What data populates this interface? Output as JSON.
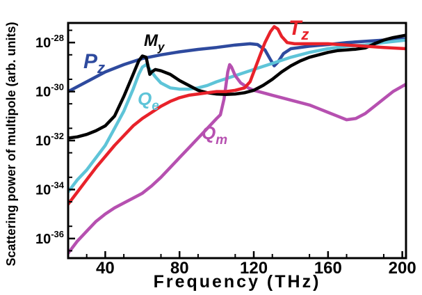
{
  "chart_data": {
    "type": "line",
    "xlabel": "Frequency (THz)",
    "ylabel": "Scattering power of multipole (arb. units)",
    "xlim": [
      20,
      202
    ],
    "ylim_log10": [
      -36.8,
      -27.2
    ],
    "y_scale": "log",
    "grid": false,
    "x_ticks": [
      40,
      80,
      120,
      160,
      200
    ],
    "y_ticks": [
      {
        "exp": -28,
        "base": "10",
        "sup": "-28"
      },
      {
        "exp": -30,
        "base": "10",
        "sup": "-30"
      },
      {
        "exp": -32,
        "base": "10",
        "sup": "-32"
      },
      {
        "exp": -34,
        "base": "10",
        "sup": "-34"
      },
      {
        "exp": -36,
        "base": "10",
        "sup": "-36"
      }
    ],
    "series": [
      {
        "key": "pz",
        "label_main": "P",
        "label_sub": "z",
        "color": "#2e4a9e",
        "points": [
          [
            20,
            -30.0
          ],
          [
            30,
            -29.6
          ],
          [
            40,
            -29.2
          ],
          [
            50,
            -28.9
          ],
          [
            60,
            -28.65
          ],
          [
            70,
            -28.5
          ],
          [
            80,
            -28.38
          ],
          [
            90,
            -28.28
          ],
          [
            100,
            -28.2
          ],
          [
            110,
            -28.1
          ],
          [
            118,
            -28.05
          ],
          [
            122,
            -28.08
          ],
          [
            126,
            -28.3
          ],
          [
            129,
            -28.7
          ],
          [
            131,
            -28.95
          ],
          [
            133,
            -28.8
          ],
          [
            136,
            -28.45
          ],
          [
            140,
            -28.25
          ],
          [
            150,
            -28.15
          ],
          [
            160,
            -28.08
          ],
          [
            170,
            -28.0
          ],
          [
            180,
            -27.95
          ],
          [
            190,
            -27.9
          ],
          [
            202,
            -27.85
          ]
        ]
      },
      {
        "key": "my",
        "label_main": "M",
        "label_sub": "y",
        "color": "#000000",
        "points": [
          [
            20,
            -31.9
          ],
          [
            25,
            -31.85
          ],
          [
            30,
            -31.75
          ],
          [
            35,
            -31.6
          ],
          [
            40,
            -31.4
          ],
          [
            45,
            -31.0
          ],
          [
            50,
            -30.2
          ],
          [
            55,
            -29.3
          ],
          [
            58,
            -28.75
          ],
          [
            60,
            -28.55
          ],
          [
            62,
            -28.6
          ],
          [
            64,
            -29.3
          ],
          [
            65,
            -29.2
          ],
          [
            67,
            -29.1
          ],
          [
            70,
            -29.15
          ],
          [
            75,
            -29.3
          ],
          [
            80,
            -29.55
          ],
          [
            85,
            -29.75
          ],
          [
            90,
            -29.95
          ],
          [
            95,
            -30.05
          ],
          [
            100,
            -30.1
          ],
          [
            105,
            -30.12
          ],
          [
            110,
            -30.1
          ],
          [
            115,
            -30.05
          ],
          [
            120,
            -29.95
          ],
          [
            125,
            -29.75
          ],
          [
            130,
            -29.5
          ],
          [
            135,
            -29.2
          ],
          [
            140,
            -28.95
          ],
          [
            145,
            -28.75
          ],
          [
            150,
            -28.6
          ],
          [
            155,
            -28.5
          ],
          [
            160,
            -28.4
          ],
          [
            165,
            -28.33
          ],
          [
            170,
            -28.3
          ],
          [
            175,
            -28.27
          ],
          [
            180,
            -28.22
          ],
          [
            185,
            -28.05
          ],
          [
            190,
            -27.9
          ],
          [
            195,
            -27.8
          ],
          [
            202,
            -27.7
          ]
        ]
      },
      {
        "key": "qe",
        "label_main": "Q",
        "label_sub": "e",
        "color": "#5ec4d8",
        "points": [
          [
            20,
            -34.1
          ],
          [
            25,
            -33.6
          ],
          [
            30,
            -33.2
          ],
          [
            35,
            -32.7
          ],
          [
            40,
            -32.2
          ],
          [
            45,
            -31.5
          ],
          [
            50,
            -30.8
          ],
          [
            55,
            -29.9
          ],
          [
            58,
            -29.3
          ],
          [
            60,
            -29.0
          ],
          [
            62,
            -28.9
          ],
          [
            64,
            -29.1
          ],
          [
            67,
            -29.4
          ],
          [
            70,
            -29.65
          ],
          [
            75,
            -29.85
          ],
          [
            80,
            -29.9
          ],
          [
            85,
            -29.9
          ],
          [
            90,
            -29.85
          ],
          [
            95,
            -29.75
          ],
          [
            100,
            -29.6
          ],
          [
            110,
            -29.35
          ],
          [
            120,
            -29.1
          ],
          [
            130,
            -28.85
          ],
          [
            140,
            -28.6
          ],
          [
            150,
            -28.4
          ],
          [
            160,
            -28.25
          ],
          [
            170,
            -28.15
          ],
          [
            180,
            -28.1
          ],
          [
            190,
            -28.0
          ],
          [
            202,
            -27.9
          ]
        ]
      },
      {
        "key": "tz",
        "label_main": "T",
        "label_sub": "z",
        "color": "#e8222a",
        "points": [
          [
            20,
            -34.6
          ],
          [
            25,
            -34.1
          ],
          [
            30,
            -33.6
          ],
          [
            35,
            -33.1
          ],
          [
            40,
            -32.65
          ],
          [
            45,
            -32.2
          ],
          [
            50,
            -31.8
          ],
          [
            55,
            -31.4
          ],
          [
            60,
            -31.1
          ],
          [
            65,
            -30.85
          ],
          [
            70,
            -30.6
          ],
          [
            75,
            -30.4
          ],
          [
            80,
            -30.25
          ],
          [
            85,
            -30.15
          ],
          [
            90,
            -30.1
          ],
          [
            95,
            -30.05
          ],
          [
            100,
            -30.0
          ],
          [
            105,
            -30.0
          ],
          [
            110,
            -29.95
          ],
          [
            115,
            -29.85
          ],
          [
            118,
            -29.6
          ],
          [
            120,
            -29.2
          ],
          [
            123,
            -28.6
          ],
          [
            126,
            -28.0
          ],
          [
            129,
            -27.55
          ],
          [
            131,
            -27.35
          ],
          [
            133,
            -27.45
          ],
          [
            135,
            -27.75
          ],
          [
            138,
            -28.0
          ],
          [
            142,
            -28.05
          ],
          [
            150,
            -28.05
          ],
          [
            160,
            -28.05
          ],
          [
            170,
            -28.1
          ],
          [
            180,
            -28.15
          ],
          [
            190,
            -28.2
          ],
          [
            202,
            -28.25
          ]
        ]
      },
      {
        "key": "qm",
        "label_main": "Q",
        "label_sub": "m",
        "color": "#b650b0",
        "points": [
          [
            20,
            -36.6
          ],
          [
            25,
            -36.1
          ],
          [
            30,
            -35.7
          ],
          [
            35,
            -35.3
          ],
          [
            40,
            -35.0
          ],
          [
            45,
            -34.75
          ],
          [
            50,
            -34.55
          ],
          [
            55,
            -34.35
          ],
          [
            60,
            -34.15
          ],
          [
            65,
            -33.85
          ],
          [
            70,
            -33.5
          ],
          [
            75,
            -33.1
          ],
          [
            80,
            -32.7
          ],
          [
            85,
            -32.3
          ],
          [
            90,
            -31.9
          ],
          [
            95,
            -31.5
          ],
          [
            100,
            -31.1
          ],
          [
            102,
            -30.95
          ],
          [
            104,
            -30.3
          ],
          [
            106,
            -29.2
          ],
          [
            107,
            -28.9
          ],
          [
            108,
            -29.0
          ],
          [
            110,
            -29.35
          ],
          [
            113,
            -29.65
          ],
          [
            117,
            -29.85
          ],
          [
            120,
            -29.95
          ],
          [
            125,
            -30.05
          ],
          [
            130,
            -30.15
          ],
          [
            135,
            -30.25
          ],
          [
            140,
            -30.35
          ],
          [
            145,
            -30.45
          ],
          [
            150,
            -30.55
          ],
          [
            155,
            -30.7
          ],
          [
            160,
            -30.85
          ],
          [
            165,
            -31.0
          ],
          [
            170,
            -31.15
          ],
          [
            175,
            -31.1
          ],
          [
            180,
            -30.9
          ],
          [
            185,
            -30.6
          ],
          [
            190,
            -30.3
          ],
          [
            195,
            -30.0
          ],
          [
            202,
            -29.7
          ]
        ]
      }
    ]
  }
}
